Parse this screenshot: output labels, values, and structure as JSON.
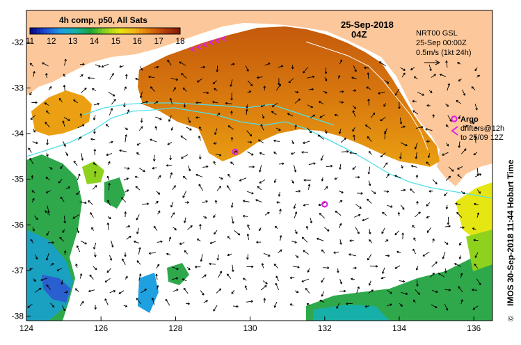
{
  "colorbar": {
    "title": "4h comp, p50, All Sats",
    "ticks": [
      "11",
      "12",
      "13",
      "14",
      "15",
      "16",
      "17",
      "18"
    ],
    "min": 11,
    "max": 18,
    "colors": [
      "#08088a",
      "#1f4fd8",
      "#1fa0e0",
      "#17b0a8",
      "#1aa53a",
      "#8fd21e",
      "#e6e612",
      "#f5b515",
      "#e2770c",
      "#b8400a",
      "#8a1c06"
    ]
  },
  "date": {
    "line1": "25-Sep-2018",
    "line2": "04Z"
  },
  "current_legend": {
    "line1": "NRT00 GSL",
    "line2": "25-Sep 00:00Z",
    "line3": "0.5m/s (1kt 24h)"
  },
  "argo_legend": {
    "argo": "Argo",
    "line1": "drifters@12h",
    "line2": "to 25/09 12Z"
  },
  "credit": "IMOS 30-Sep-2018 11:44 Hobart Time",
  "copyright": "©",
  "axes": {
    "x_ticks": [
      "124",
      "126",
      "128",
      "130",
      "132",
      "134",
      "136"
    ],
    "y_ticks": [
      "-32",
      "-33",
      "-34",
      "-35",
      "-36",
      "-37",
      "-38"
    ],
    "lon_range": [
      124,
      136.5
    ],
    "lat_range": [
      -38.1,
      -31.3
    ]
  },
  "colors": {
    "land": "#fcc79a",
    "ocean_nodata": "#ffffff",
    "argo": "#e020e0",
    "contour": "#50e0e8"
  },
  "argo_floats": [
    {
      "lon": 129.6,
      "lat": -34.4
    },
    {
      "lon": 132.0,
      "lat": -35.55
    }
  ],
  "drifter_track": [
    {
      "lon": 128.45,
      "lat": -32.15
    },
    {
      "lon": 128.62,
      "lat": -32.1
    },
    {
      "lon": 128.78,
      "lat": -32.05
    },
    {
      "lon": 128.95,
      "lat": -32.0
    },
    {
      "lon": 129.12,
      "lat": -31.96
    },
    {
      "lon": 129.28,
      "lat": -31.92
    }
  ]
}
